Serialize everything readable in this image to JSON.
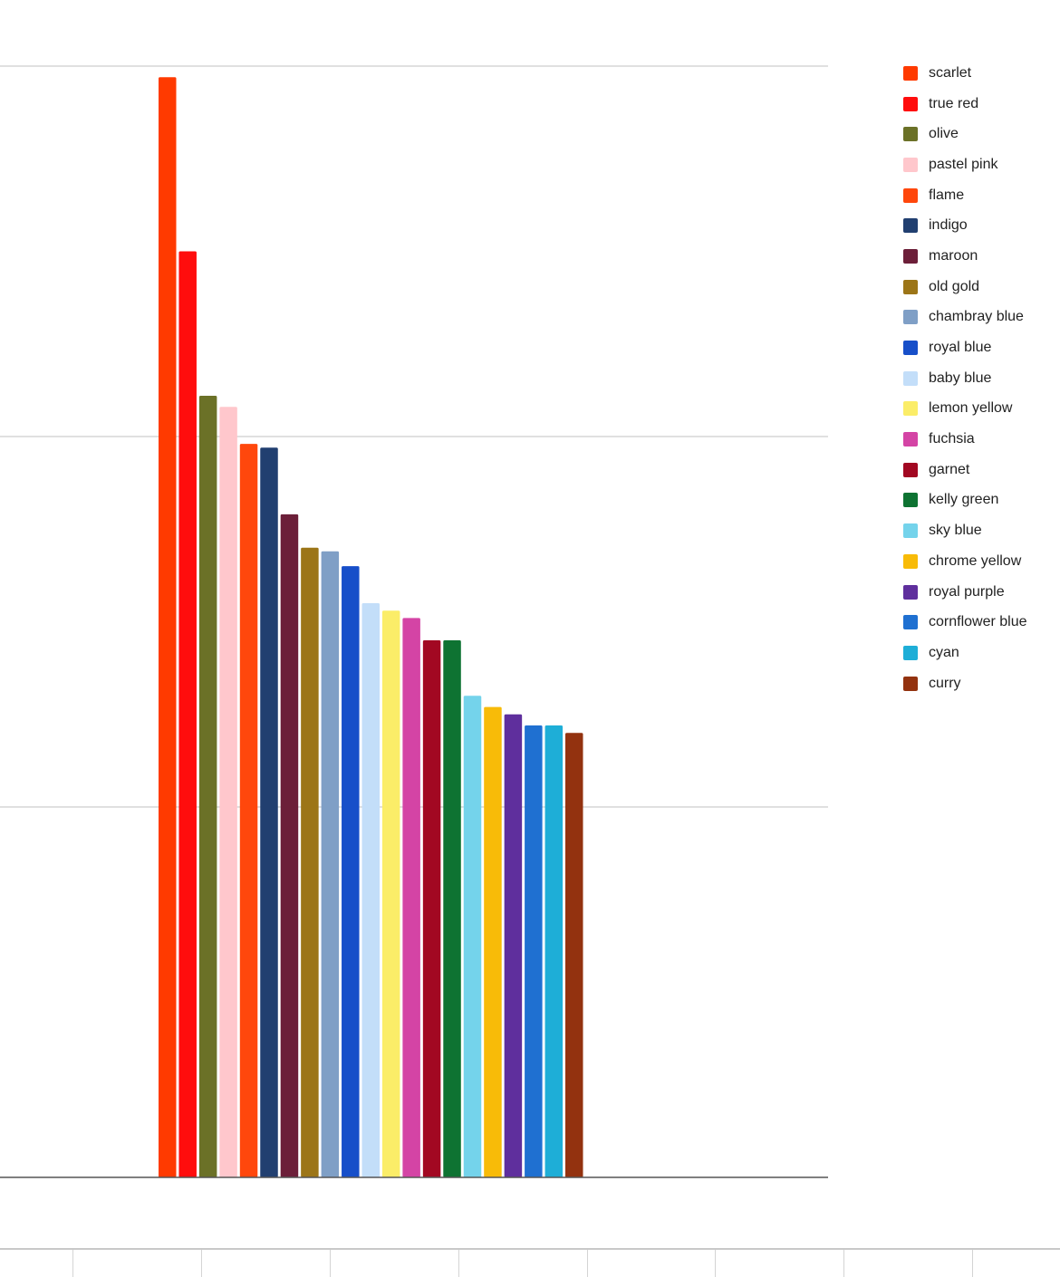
{
  "chart_data": {
    "type": "bar",
    "title": "",
    "xlabel": "",
    "ylabel": "",
    "ylim": [
      0,
      3
    ],
    "gridlines": [
      1,
      2,
      3
    ],
    "grid": true,
    "legend_position": "right",
    "categories": [
      ""
    ],
    "series": [
      {
        "name": "scarlet",
        "values": [
          2.97
        ],
        "color": "#ff3a00"
      },
      {
        "name": "true red",
        "values": [
          2.5
        ],
        "color": "#ff0d0d"
      },
      {
        "name": "olive",
        "values": [
          2.11
        ],
        "color": "#6b7127"
      },
      {
        "name": "pastel pink",
        "values": [
          2.08
        ],
        "color": "#ffc7cc"
      },
      {
        "name": "flame",
        "values": [
          1.98
        ],
        "color": "#ff470c"
      },
      {
        "name": "indigo",
        "values": [
          1.97
        ],
        "color": "#213f70"
      },
      {
        "name": "maroon",
        "values": [
          1.79
        ],
        "color": "#6c1f39"
      },
      {
        "name": "old gold",
        "values": [
          1.7
        ],
        "color": "#9c7517"
      },
      {
        "name": "chambray blue",
        "values": [
          1.69
        ],
        "color": "#7f9fc6"
      },
      {
        "name": "royal blue",
        "values": [
          1.65
        ],
        "color": "#174fc9"
      },
      {
        "name": "baby blue",
        "values": [
          1.55
        ],
        "color": "#c3def9"
      },
      {
        "name": "lemon yellow",
        "values": [
          1.53
        ],
        "color": "#fbed68"
      },
      {
        "name": "fuchsia",
        "values": [
          1.51
        ],
        "color": "#d444a5"
      },
      {
        "name": "garnet",
        "values": [
          1.45
        ],
        "color": "#a20822"
      },
      {
        "name": "kelly green",
        "values": [
          1.45
        ],
        "color": "#0e7332"
      },
      {
        "name": "sky blue",
        "values": [
          1.3
        ],
        "color": "#74d3eb"
      },
      {
        "name": "chrome yellow",
        "values": [
          1.27
        ],
        "color": "#f8bb08"
      },
      {
        "name": "royal purple",
        "values": [
          1.25
        ],
        "color": "#5f2f9d"
      },
      {
        "name": "cornflower blue",
        "values": [
          1.22
        ],
        "color": "#1f70d1"
      },
      {
        "name": "cyan",
        "values": [
          1.22
        ],
        "color": "#1eaed7"
      },
      {
        "name": "curry",
        "values": [
          1.2
        ],
        "color": "#93320f"
      }
    ]
  },
  "colors": {
    "gridline": "#d6d6d6",
    "baseline": "#555555",
    "footer_border": "#c8c8c8"
  }
}
